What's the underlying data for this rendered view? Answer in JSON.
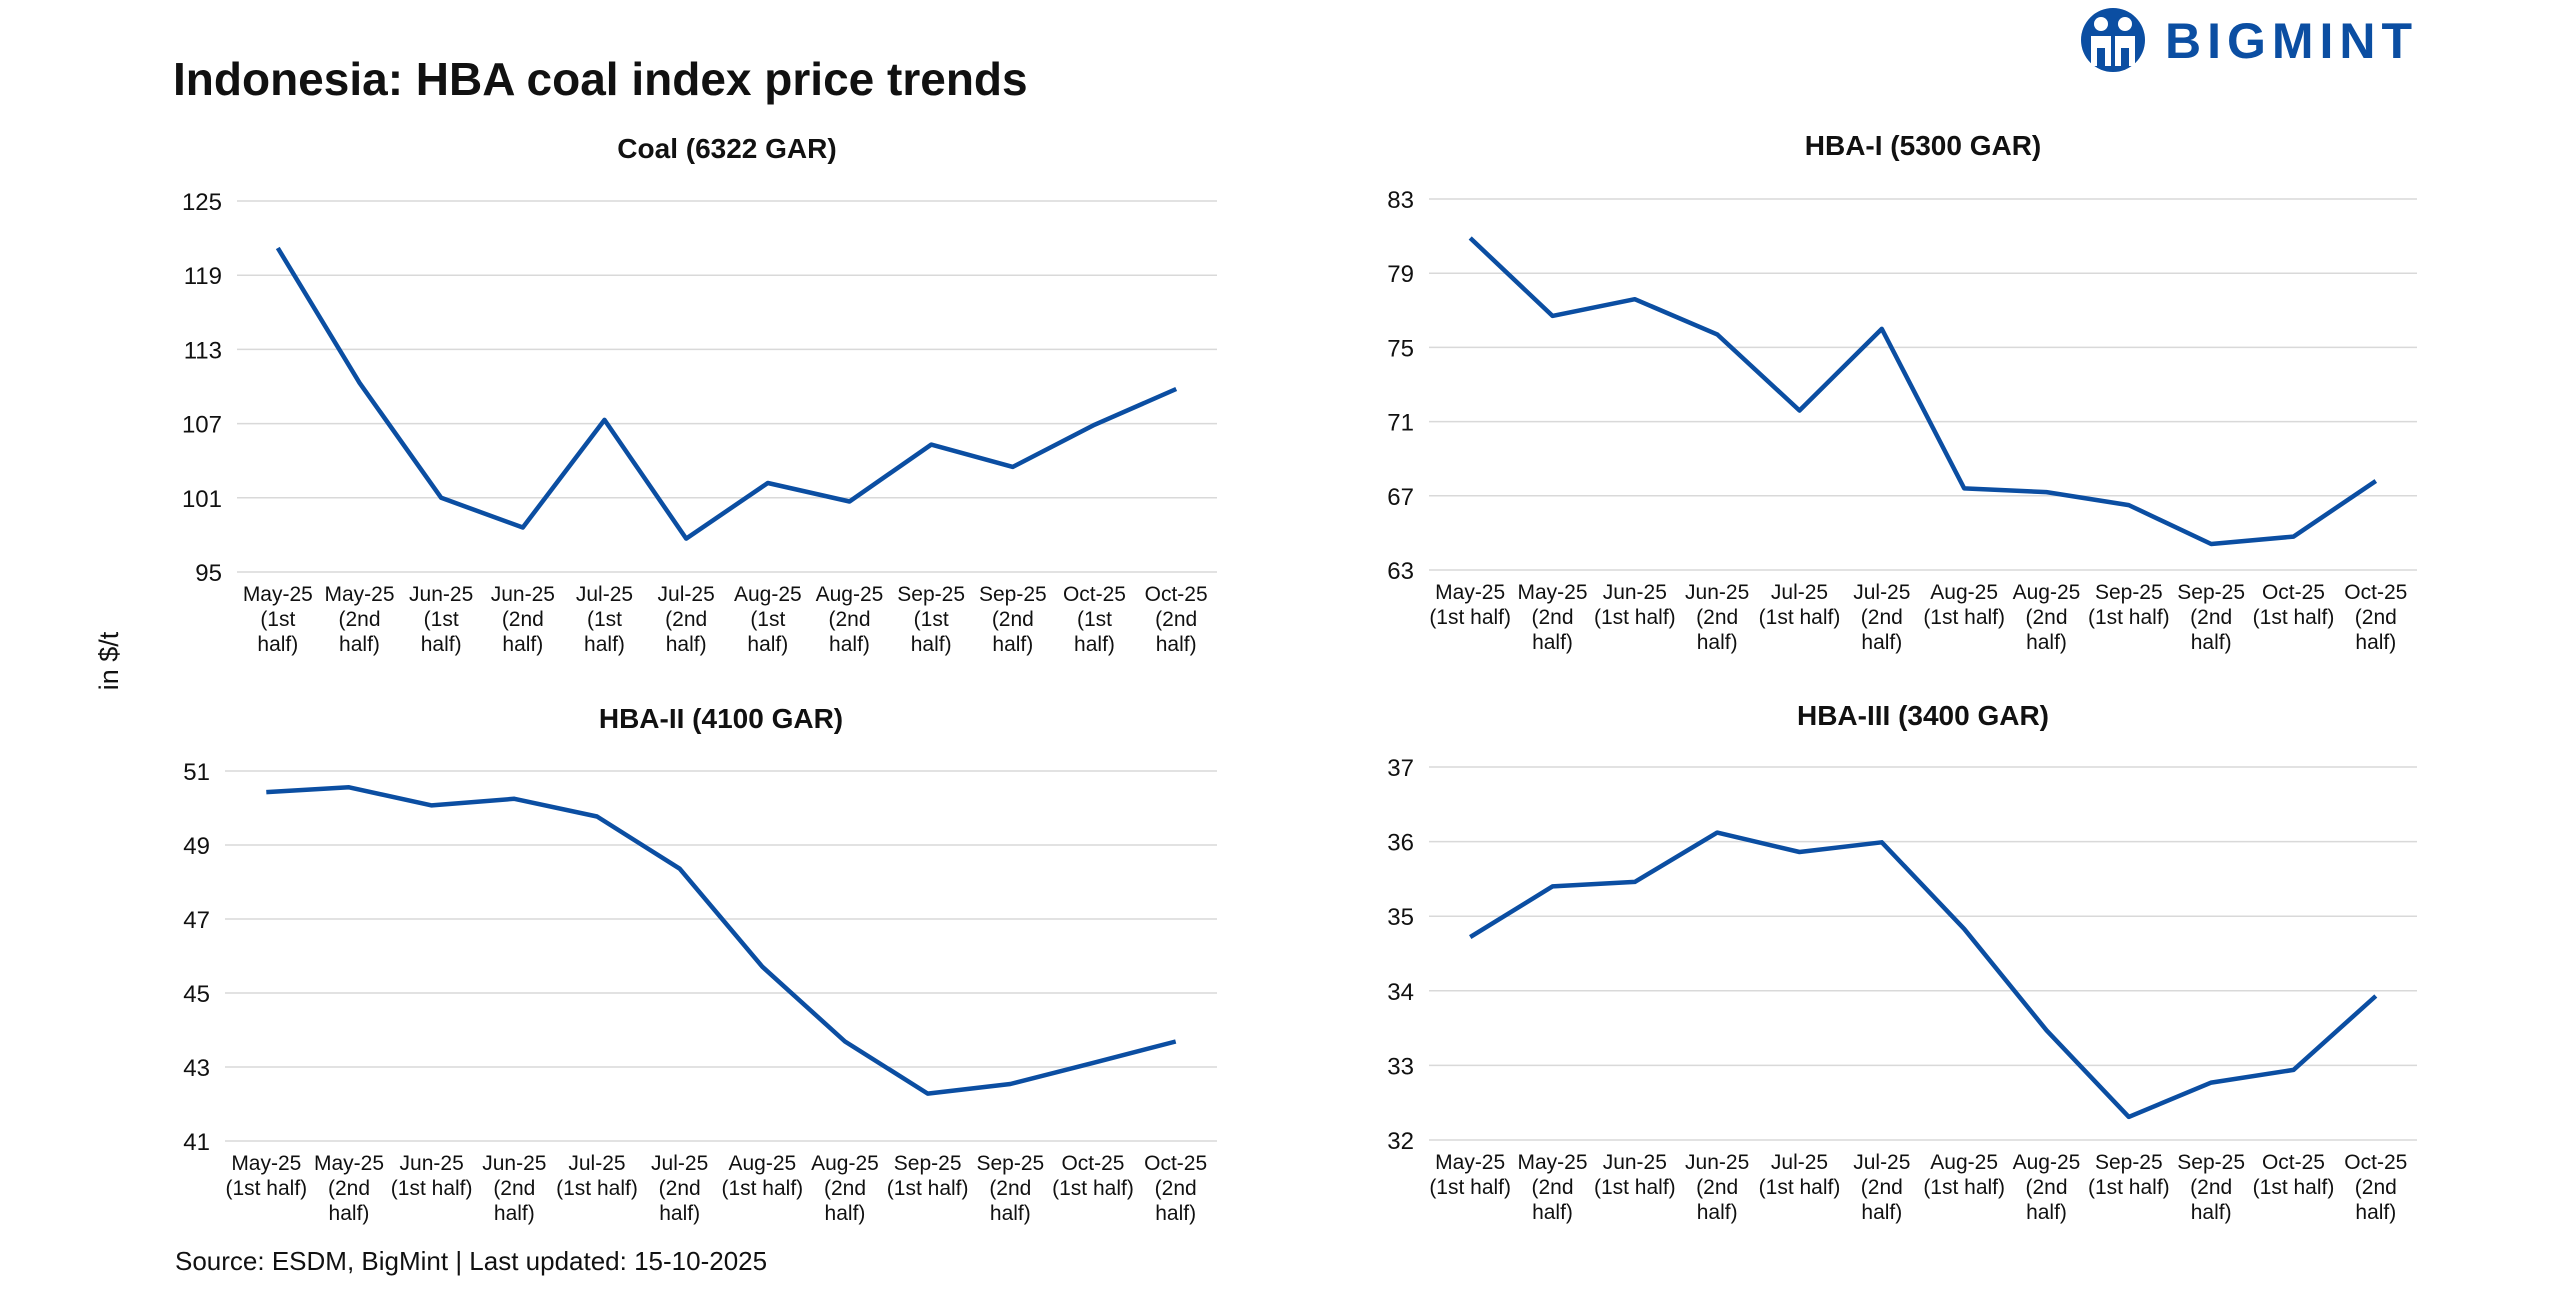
{
  "title": "Indonesia: HBA coal index price trends",
  "logo": "BIGMINT",
  "y_axis_label": "in $/t",
  "source": "Source: ESDM, BigMint | Last updated: 15-10-2025",
  "chart_data": [
    {
      "type": "line",
      "title": "Coal (6322 GAR)",
      "color": "#0b4ea2",
      "grid": true,
      "categories": [
        "May-25 (1st half)",
        "May-25 (2nd half)",
        "Jun-25 (1st half)",
        "Jun-25 (2nd half)",
        "Jul-25 (1st half)",
        "Jul-25 (2nd half)",
        "Aug-25 (1st half)",
        "Aug-25 (2nd half)",
        "Sep-25 (1st half)",
        "Sep-25 (2nd half)",
        "Oct-25 (1st half)",
        "Oct-25 (2nd half)"
      ],
      "values": [
        121.2,
        110.3,
        101.0,
        98.6,
        107.3,
        97.7,
        102.2,
        100.7,
        105.3,
        103.5,
        106.9,
        109.8
      ],
      "ylim": [
        95,
        125
      ],
      "yticks": [
        95,
        101,
        107,
        113,
        119,
        125
      ]
    },
    {
      "type": "line",
      "title": "HBA-I (5300 GAR)",
      "color": "#0b4ea2",
      "grid": true,
      "categories": [
        "May-25 (1st half)",
        "May-25 (2nd half)",
        "Jun-25 (1st half)",
        "Jun-25 (2nd half)",
        "Jul-25 (1st half)",
        "Jul-25 (2nd half)",
        "Aug-25 (1st half)",
        "Aug-25 (2nd half)",
        "Sep-25 (1st half)",
        "Sep-25 (2nd half)",
        "Oct-25 (1st half)",
        "Oct-25 (2nd half)"
      ],
      "values": [
        80.9,
        76.7,
        77.6,
        75.7,
        71.6,
        76.0,
        67.4,
        67.2,
        66.5,
        64.4,
        64.8,
        67.8
      ],
      "ylim": [
        63,
        83
      ],
      "yticks": [
        63,
        67,
        71,
        75,
        79,
        83
      ]
    },
    {
      "type": "line",
      "title": "HBA-II (4100 GAR)",
      "color": "#0b4ea2",
      "grid": true,
      "categories": [
        "May-25 (1st half)",
        "May-25 (2nd half)",
        "Jun-25 (1st half)",
        "Jun-25 (2nd half)",
        "Jul-25 (1st half)",
        "Jul-25 (2nd half)",
        "Aug-25 (1st half)",
        "Aug-25 (2nd half)",
        "Sep-25 (1st half)",
        "Sep-25 (2nd half)",
        "Oct-25 (1st half)",
        "Oct-25 (2nd half)"
      ],
      "values": [
        50.43,
        50.56,
        50.07,
        50.25,
        49.77,
        48.36,
        45.71,
        43.69,
        42.28,
        42.54,
        43.11,
        43.69
      ],
      "ylim": [
        41,
        51
      ],
      "yticks": [
        41,
        43,
        45,
        47,
        49,
        51
      ]
    },
    {
      "type": "line",
      "title": "HBA-III (3400 GAR)",
      "color": "#0b4ea2",
      "grid": true,
      "categories": [
        "May-25 (1st half)",
        "May-25 (2nd half)",
        "Jun-25 (1st half)",
        "Jun-25 (2nd half)",
        "Jul-25 (1st half)",
        "Jul-25 (2nd half)",
        "Aug-25 (1st half)",
        "Aug-25 (2nd half)",
        "Sep-25 (1st half)",
        "Sep-25 (2nd half)",
        "Oct-25 (1st half)",
        "Oct-25 (2nd half)"
      ],
      "values": [
        34.72,
        35.4,
        35.46,
        36.12,
        35.86,
        35.99,
        34.83,
        33.47,
        32.31,
        32.77,
        32.94,
        33.93
      ],
      "ylim": [
        32,
        37
      ],
      "yticks": [
        32,
        33,
        34,
        35,
        36,
        37
      ]
    }
  ]
}
